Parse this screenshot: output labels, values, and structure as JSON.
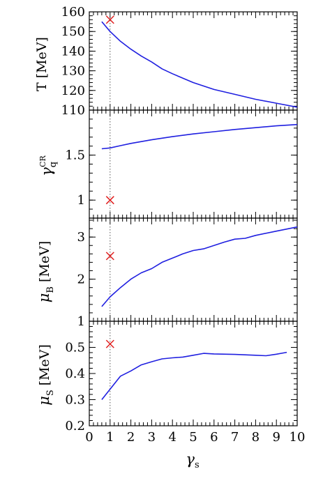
{
  "chart_data": [
    {
      "type": "line",
      "panel": "T",
      "ylabel": "T  [MeV]",
      "ylim": [
        110,
        160
      ],
      "yticks": [
        110,
        120,
        130,
        140,
        150,
        160
      ],
      "ytick_labels": [
        "110",
        "120",
        "130",
        "140",
        "150",
        "160"
      ],
      "xlim": [
        0,
        10
      ],
      "series": [
        {
          "color": "#1f1fe0",
          "x": [
            0.6,
            1.0,
            1.5,
            2.0,
            2.5,
            3.0,
            3.5,
            4.0,
            5.0,
            6.0,
            7.0,
            8.0,
            9.0,
            10.0
          ],
          "y": [
            155.0,
            150.0,
            145.0,
            141.0,
            137.5,
            134.5,
            131.0,
            128.5,
            124.0,
            120.5,
            118.0,
            115.5,
            113.5,
            111.5
          ]
        }
      ],
      "marker": {
        "x": 1.0,
        "y": 156.0,
        "symbol": "x",
        "color": "#e01f1f"
      },
      "vline_x": 1.0
    },
    {
      "type": "line",
      "panel": "gamma_q",
      "ylabel_main": "γ",
      "ylabel_sub": "q",
      "ylabel_sup": "CR",
      "ylim": [
        0.8,
        2.0
      ],
      "yticks": [
        1.0,
        1.5
      ],
      "ytick_labels": [
        "1",
        "1.5"
      ],
      "xlim": [
        0,
        10
      ],
      "series": [
        {
          "color": "#1f1fe0",
          "x": [
            0.6,
            1.0,
            1.5,
            2.0,
            3.0,
            4.0,
            5.0,
            6.0,
            7.0,
            8.0,
            9.0,
            10.0
          ],
          "y": [
            1.57,
            1.58,
            1.605,
            1.63,
            1.67,
            1.705,
            1.735,
            1.76,
            1.785,
            1.805,
            1.825,
            1.84
          ]
        }
      ],
      "marker": {
        "x": 1.0,
        "y": 1.0,
        "symbol": "x",
        "color": "#e01f1f"
      },
      "vline_x": 1.0
    },
    {
      "type": "line",
      "panel": "mu_B",
      "ylabel_main": "μ",
      "ylabel_sub": "B",
      "ylabel_unit": "[MeV]",
      "ylim": [
        1.0,
        3.45
      ],
      "yticks": [
        1,
        2,
        3
      ],
      "ytick_labels": [
        "1",
        "2",
        "3"
      ],
      "xlim": [
        0,
        10
      ],
      "series": [
        {
          "color": "#1f1fe0",
          "x": [
            0.6,
            1.0,
            1.5,
            2.0,
            2.5,
            3.0,
            3.5,
            4.0,
            4.5,
            5.0,
            5.5,
            6.0,
            6.5,
            7.0,
            7.5,
            8.0,
            9.0,
            10.0
          ],
          "y": [
            1.35,
            1.58,
            1.8,
            2.0,
            2.15,
            2.25,
            2.4,
            2.5,
            2.6,
            2.68,
            2.72,
            2.8,
            2.88,
            2.95,
            2.97,
            3.04,
            3.14,
            3.24
          ]
        }
      ],
      "marker": {
        "x": 1.0,
        "y": 2.55,
        "symbol": "x",
        "color": "#e01f1f"
      },
      "vline_x": 1.0
    },
    {
      "type": "line",
      "panel": "mu_S",
      "ylabel_main": "μ",
      "ylabel_sub": "S",
      "ylabel_unit": "[MeV]",
      "ylim": [
        0.2,
        0.6
      ],
      "yticks": [
        0.2,
        0.3,
        0.4,
        0.5
      ],
      "ytick_labels": [
        "0.2",
        "0.3",
        "0.4",
        "0.5"
      ],
      "xlim": [
        0,
        10
      ],
      "xticks": [
        0,
        1,
        2,
        3,
        4,
        5,
        6,
        7,
        8,
        9,
        10
      ],
      "xtick_labels": [
        "0",
        "1",
        "2",
        "3",
        "4",
        "5",
        "6",
        "7",
        "8",
        "9",
        "10"
      ],
      "xlabel_main": "γ",
      "xlabel_sub": "s",
      "series": [
        {
          "color": "#1f1fe0",
          "x": [
            0.6,
            1.0,
            1.5,
            2.0,
            2.5,
            3.0,
            3.5,
            4.0,
            4.5,
            5.0,
            5.5,
            6.0,
            7.0,
            8.0,
            8.5,
            9.0,
            9.5
          ],
          "y": [
            0.3,
            0.34,
            0.39,
            0.41,
            0.433,
            0.445,
            0.456,
            0.46,
            0.463,
            0.47,
            0.477,
            0.475,
            0.473,
            0.47,
            0.468,
            0.474,
            0.481
          ]
        }
      ],
      "marker": {
        "x": 1.0,
        "y": 0.513,
        "symbol": "x",
        "color": "#e01f1f"
      },
      "vline_x": 1.0
    }
  ]
}
